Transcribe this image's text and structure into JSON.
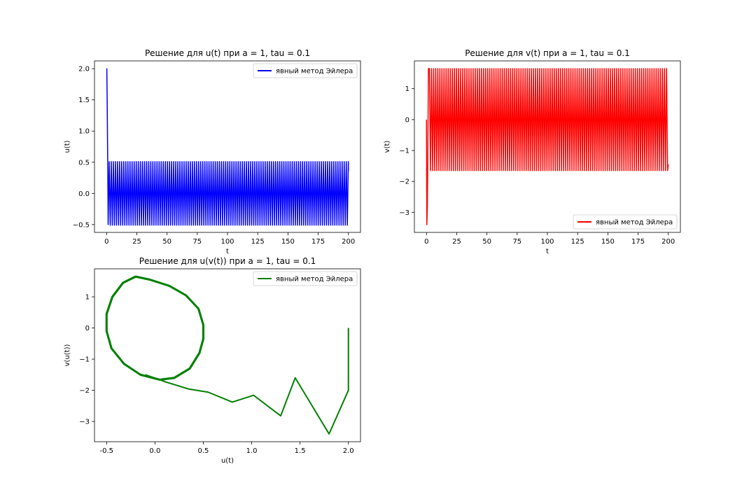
{
  "chart_data": [
    {
      "type": "line",
      "title": "Решение для u(t) при a = 1, tau = 0.1",
      "xlabel": "t",
      "ylabel": "u(t)",
      "xlim": [
        -10,
        210
      ],
      "ylim": [
        -0.625,
        2.125
      ],
      "xticks": [
        0,
        25,
        50,
        75,
        100,
        125,
        150,
        175,
        200
      ],
      "yticks": [
        -0.5,
        0.0,
        0.5,
        1.0,
        1.5,
        2.0
      ],
      "legend_loc": "upper right",
      "grid": false,
      "series": [
        {
          "name": "явный метод Эйлера",
          "color": "#0000ff",
          "description": "starts at u=2.0, drops sharply, then oscillates between about -0.51 and 0.51 with period ~1.7",
          "initial_points": [
            [
              0,
              2.0
            ],
            [
              0.2,
              2.0
            ],
            [
              0.5,
              1.45
            ],
            [
              1.0,
              0.35
            ],
            [
              1.3,
              -0.5
            ]
          ],
          "oscillation": {
            "t_start": 1.3,
            "t_end": 200,
            "period": 1.72,
            "min": -0.51,
            "max": 0.51
          },
          "end_value": 0.36
        }
      ]
    },
    {
      "type": "line",
      "title": "Решение для v(t) при a = 1, tau = 0.1",
      "xlabel": "t",
      "ylabel": "v(t)",
      "xlim": [
        -10,
        210
      ],
      "ylim": [
        -3.65,
        1.9
      ],
      "xticks": [
        0,
        25,
        50,
        75,
        100,
        125,
        150,
        175,
        200
      ],
      "yticks": [
        -3,
        -2,
        -1,
        0,
        1
      ],
      "legend_loc": "lower right",
      "grid": false,
      "series": [
        {
          "name": "явный метод Эйлера",
          "color": "#ff0000",
          "description": "starts at v=0, dips to about -3.4, then oscillates between about -1.65 and 1.65",
          "initial_points": [
            [
              0,
              0.0
            ],
            [
              0.3,
              -3.4
            ],
            [
              0.7,
              -2.8
            ],
            [
              1.0,
              -1.6
            ],
            [
              1.6,
              1.65
            ]
          ],
          "oscillation": {
            "t_start": 1.6,
            "t_end": 200,
            "period": 1.72,
            "min": -1.65,
            "max": 1.65
          },
          "end_value": -1.45
        }
      ]
    },
    {
      "type": "line",
      "title": "Решение для u(v(t)) при a = 1, tau = 0.1",
      "xlabel": "u(t)",
      "ylabel": "v(u(t))",
      "xlim": [
        -0.625,
        2.125
      ],
      "ylim": [
        -3.65,
        1.9
      ],
      "xticks": [
        -0.5,
        0.0,
        0.5,
        1.0,
        1.5,
        2.0
      ],
      "yticks": [
        -3,
        -2,
        -1,
        0,
        1
      ],
      "legend_loc": "upper right",
      "grid": false,
      "series": [
        {
          "name": "явный метод Эйлера",
          "color": "#008000",
          "transient_points": [
            [
              2.0,
              0.0
            ],
            [
              2.0,
              -2.0
            ],
            [
              1.8,
              -3.4
            ],
            [
              1.45,
              -1.6
            ],
            [
              1.3,
              -2.82
            ],
            [
              1.02,
              -2.16
            ],
            [
              0.8,
              -2.38
            ],
            [
              0.55,
              -2.06
            ],
            [
              0.35,
              -1.96
            ],
            [
              0.1,
              -1.72
            ],
            [
              -0.1,
              -1.5
            ]
          ],
          "limit_cycle": [
            [
              -0.2,
              1.65
            ],
            [
              -0.05,
              1.55
            ],
            [
              0.15,
              1.35
            ],
            [
              0.32,
              1.05
            ],
            [
              0.45,
              0.62
            ],
            [
              0.5,
              0.1
            ],
            [
              0.5,
              -0.35
            ],
            [
              0.46,
              -0.8
            ],
            [
              0.36,
              -1.3
            ],
            [
              0.2,
              -1.6
            ],
            [
              0.05,
              -1.66
            ],
            [
              -0.15,
              -1.5
            ],
            [
              -0.32,
              -1.15
            ],
            [
              -0.45,
              -0.65
            ],
            [
              -0.5,
              -0.1
            ],
            [
              -0.5,
              0.45
            ],
            [
              -0.44,
              1.0
            ],
            [
              -0.33,
              1.45
            ],
            [
              -0.2,
              1.65
            ]
          ]
        }
      ]
    }
  ]
}
